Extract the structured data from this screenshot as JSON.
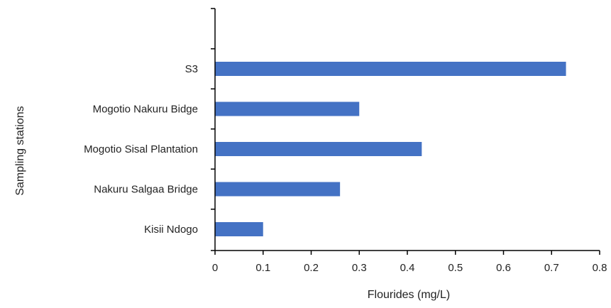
{
  "chart_data": {
    "type": "bar",
    "orientation": "horizontal",
    "categories": [
      "S3",
      "Mogotio Nakuru Bidge",
      "Mogotio Sisal Plantation",
      "Nakuru Salgaa Bridge",
      "Kisii Ndogo"
    ],
    "values": [
      0.73,
      0.3,
      0.43,
      0.26,
      0.1
    ],
    "title": "",
    "xlabel": "Flourides (mg/L)",
    "ylabel": "Sampling stations",
    "xlim": [
      0,
      0.8
    ],
    "xticks": [
      "0",
      "0.1",
      "0.2",
      "0.3",
      "0.4",
      "0.5",
      "0.6",
      "0.7",
      "0.8"
    ],
    "grid": false,
    "legend": "none",
    "bar_color": "#4472C4",
    "axis_color": "#000000"
  }
}
